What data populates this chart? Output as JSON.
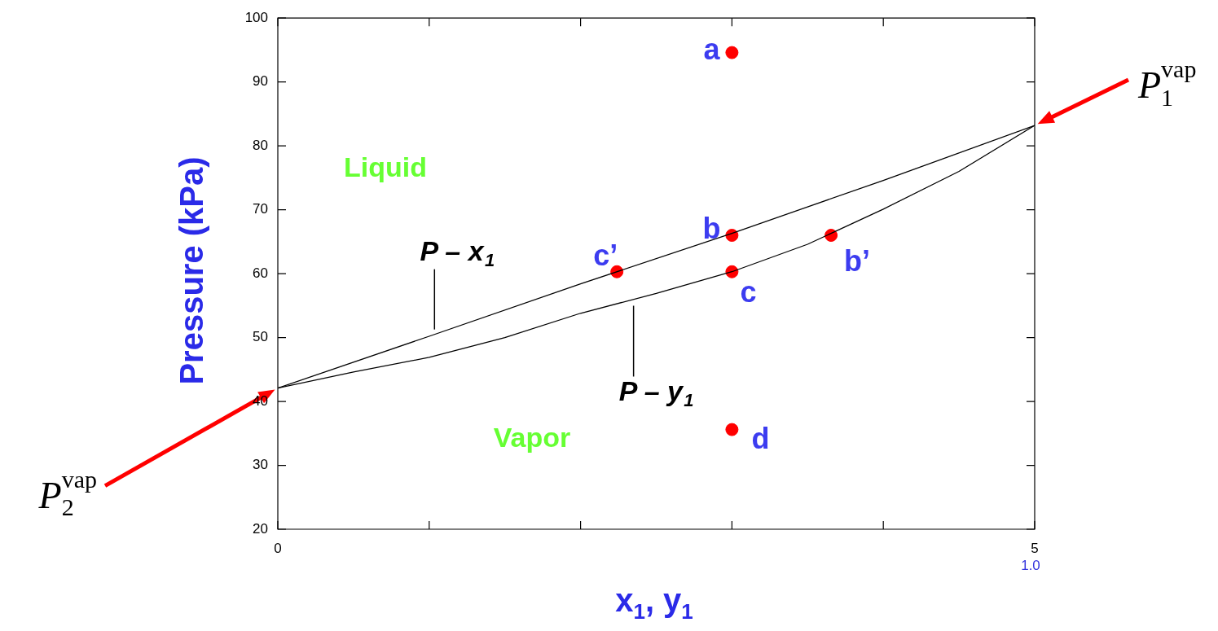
{
  "chart_data": {
    "type": "line",
    "xlabel": "x$_{1}$, y$_{1}$",
    "ylabel": "Pressure (kPa)",
    "xlim": [
      0,
      5
    ],
    "xticks": [
      0,
      {
        "value": 1,
        "label": null
      },
      {
        "value": 2,
        "label": null
      },
      {
        "value": 3,
        "label": null
      },
      {
        "value": 4,
        "label": null
      },
      5
    ],
    "ylim": [
      20,
      100
    ],
    "yticks": [
      20,
      30,
      40,
      50,
      60,
      70,
      80,
      90,
      100
    ],
    "marker": "none",
    "line_style": "solid",
    "series": [
      {
        "color": "#000000",
        "x": [
          0,
          1,
          2,
          3,
          4,
          5
        ],
        "values": [
          42.1,
          50.2,
          58.4,
          66.3,
          74.6,
          83.2
        ]
      },
      {
        "color": "#000000",
        "x": [
          0,
          0.5,
          1,
          1.5,
          2,
          2.5,
          3,
          3.5,
          4,
          4.5,
          5
        ],
        "values": [
          42.1,
          44.6,
          46.9,
          50,
          53.8,
          56.9,
          60.3,
          64.6,
          70.1,
          76,
          83.2
        ]
      },
      {
        "type": "scatter",
        "color": "#ff0000",
        "marker": "circle",
        "x": [
          3,
          3,
          3,
          3,
          2.24,
          3.655
        ],
        "values": [
          94.6,
          66,
          60.3,
          35.6,
          60.3,
          66
        ]
      }
    ],
    "annotations": [
      {
        "text": "a",
        "x": 3,
        "y": 94.6
      },
      {
        "text": "b",
        "x": 3,
        "y": 66
      },
      {
        "text": "c",
        "x": 3,
        "y": 60.3
      },
      {
        "text": "d",
        "x": 3,
        "y": 35.6
      },
      {
        "text": "c’",
        "x": 2.24,
        "y": 60.3
      },
      {
        "text": "b’",
        "x": 3.655,
        "y": 66
      },
      "Liquid",
      "Vapor",
      {
        "text": "P – x$_{1}$",
        "x": 1.035,
        "y": 50.5
      },
      {
        "text": "P – y$_{1}$",
        "x": 2.35,
        "y": 56
      },
      "P$_{1}$$^{vap}$",
      "P$_{2}$$^{vap}$",
      "1.0"
    ]
  }
}
